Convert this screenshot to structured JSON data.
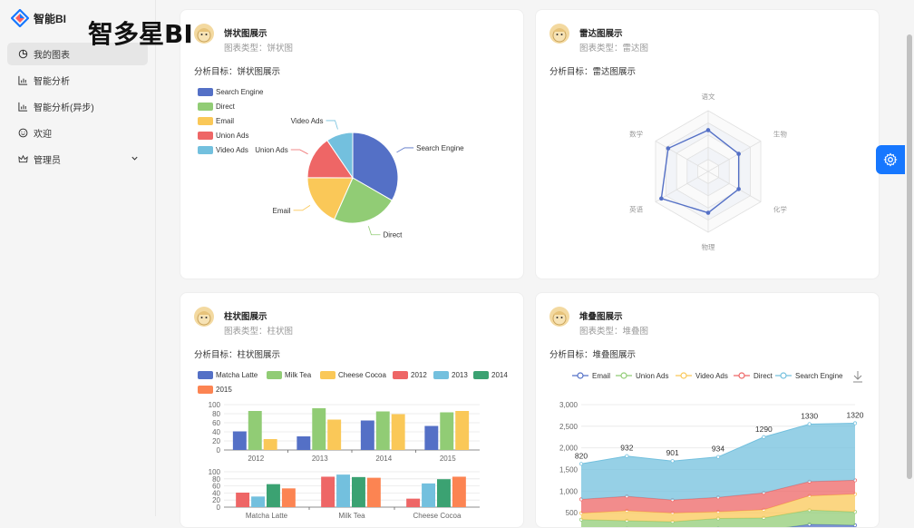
{
  "app": {
    "name": "智能BI",
    "heading": "智多星BI"
  },
  "menu": [
    {
      "label": "我的图表",
      "icon": "pie-chart-icon",
      "active": true
    },
    {
      "label": "智能分析",
      "icon": "bar-chart-icon"
    },
    {
      "label": "智能分析(异步)",
      "icon": "bar-chart-icon"
    },
    {
      "label": "欢迎",
      "icon": "smile-icon"
    },
    {
      "label": "管理员",
      "icon": "crown-icon",
      "expandable": true
    }
  ],
  "colors": {
    "accent": "#1677ff",
    "c1": "#5470c6",
    "c2": "#91cc75",
    "c3": "#fac858",
    "c4": "#ee6666",
    "c5": "#73c0de",
    "c6": "#3ba272",
    "c7": "#fc8452"
  },
  "cards": [
    {
      "title": "饼状图展示",
      "type": "图表类型：饼状图",
      "goal": "分析目标：饼状图展示"
    },
    {
      "title": "雷达图展示",
      "type": "图表类型：雷达图",
      "goal": "分析目标：雷达图展示"
    },
    {
      "title": "柱状图展示",
      "type": "图表类型：柱状图",
      "goal": "分析目标：柱状图展示"
    },
    {
      "title": "堆叠图展示",
      "type": "图表类型：堆叠图",
      "goal": "分析目标：堆叠图展示"
    }
  ],
  "chart_data": [
    {
      "type": "pie",
      "categories": [
        "Search Engine",
        "Direct",
        "Email",
        "Union Ads",
        "Video Ads"
      ],
      "values": [
        1048,
        735,
        580,
        484,
        300
      ],
      "legend": "top-left"
    },
    {
      "type": "radar",
      "indicators": [
        "语文",
        "生物",
        "化学",
        "物理",
        "英语",
        "数学"
      ],
      "max": 100,
      "values": [
        68,
        58,
        58,
        68,
        89,
        76
      ],
      "legend": "none"
    },
    {
      "type": "bar",
      "legend_entries": [
        "Matcha Latte",
        "Milk Tea",
        "Cheese Cocoa",
        "2012",
        "2013",
        "2014",
        "2015"
      ],
      "top": {
        "categories": [
          "2012",
          "2013",
          "2014",
          "2015"
        ],
        "series": [
          {
            "name": "Matcha Latte",
            "values": [
              41,
              30,
              65,
              53
            ]
          },
          {
            "name": "Milk Tea",
            "values": [
              86,
              92,
              85,
              83
            ]
          },
          {
            "name": "Cheese Cocoa",
            "values": [
              24,
              67,
              79,
              86
            ]
          }
        ],
        "ylim": [
          0,
          100
        ],
        "yticks": [
          "0",
          "20",
          "40",
          "60",
          "80",
          "100"
        ]
      },
      "bottom": {
        "categories": [
          "Matcha Latte",
          "Milk Tea",
          "Cheese Cocoa"
        ],
        "series": [
          {
            "name": "2012",
            "values": [
              41,
              86,
              24
            ]
          },
          {
            "name": "2013",
            "values": [
              30,
              92,
              67
            ]
          },
          {
            "name": "2014",
            "values": [
              65,
              85,
              79
            ]
          },
          {
            "name": "2015",
            "values": [
              53,
              83,
              86
            ]
          }
        ],
        "ylim": [
          0,
          100
        ],
        "yticks": [
          "0",
          "20",
          "40",
          "60",
          "80",
          "100"
        ]
      }
    },
    {
      "type": "area",
      "stacked": true,
      "series": [
        {
          "name": "Email",
          "values": [
            120,
            132,
            101,
            134,
            90,
            230,
            210
          ]
        },
        {
          "name": "Union Ads",
          "values": [
            220,
            182,
            191,
            234,
            290,
            330,
            310
          ]
        },
        {
          "name": "Video Ads",
          "values": [
            150,
            232,
            201,
            154,
            190,
            330,
            410
          ]
        },
        {
          "name": "Direct",
          "values": [
            320,
            332,
            301,
            334,
            390,
            330,
            320
          ]
        },
        {
          "name": "Search Engine",
          "values": [
            820,
            932,
            901,
            934,
            1290,
            1330,
            1320
          ]
        }
      ],
      "labels": [
        "820",
        "932",
        "901",
        "934",
        "1290",
        "1330",
        "1320"
      ],
      "yticks": [
        "500",
        "1,000",
        "1,500",
        "2,000",
        "2,500",
        "3,000"
      ],
      "ylim": [
        0,
        3000
      ],
      "legend": "top"
    }
  ]
}
